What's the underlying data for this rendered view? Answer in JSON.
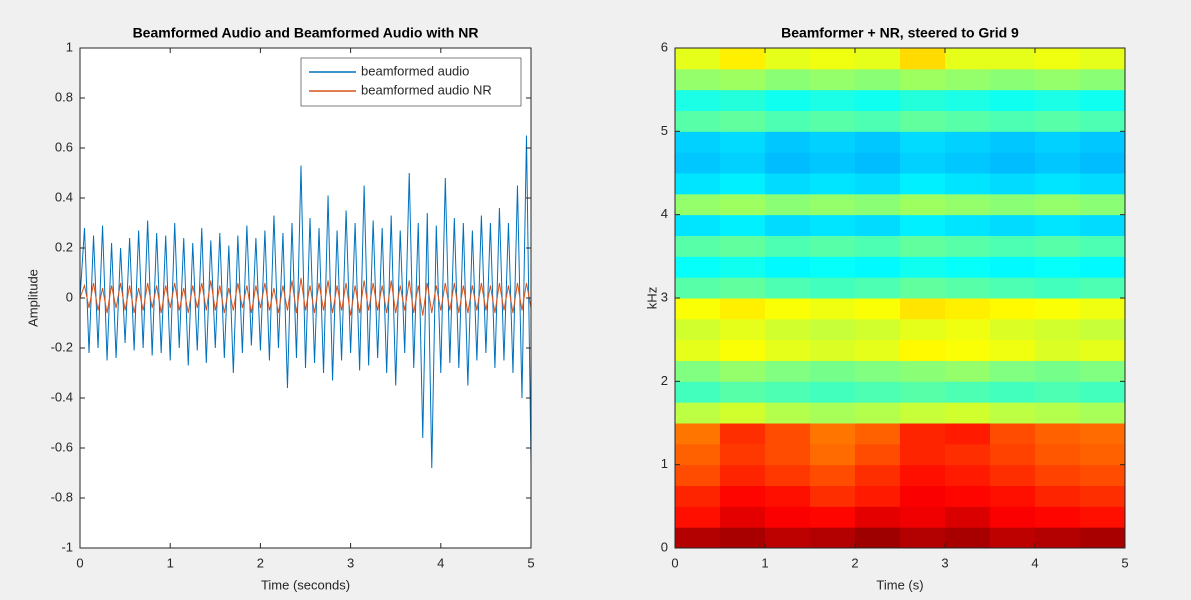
{
  "chart_data": [
    {
      "type": "line",
      "title": "Beamformed Audio and Beamformed Audio with NR",
      "xlabel": "Time (seconds)",
      "ylabel": "Amplitude",
      "xlim": [
        0,
        5
      ],
      "ylim": [
        -1,
        1
      ],
      "xticks": [
        0,
        1,
        2,
        3,
        4,
        5
      ],
      "yticks": [
        -1,
        -0.8,
        -0.6,
        -0.4,
        -0.2,
        0,
        0.2,
        0.4,
        0.6,
        0.8,
        1
      ],
      "legend": "upper right",
      "x": [
        0,
        0.05,
        0.1,
        0.15,
        0.2,
        0.25,
        0.3,
        0.35,
        0.4,
        0.45,
        0.5,
        0.55,
        0.6,
        0.65,
        0.7,
        0.75,
        0.8,
        0.85,
        0.9,
        0.95,
        1,
        1.05,
        1.1,
        1.15,
        1.2,
        1.25,
        1.3,
        1.35,
        1.4,
        1.45,
        1.5,
        1.55,
        1.6,
        1.65,
        1.7,
        1.75,
        1.8,
        1.85,
        1.9,
        1.95,
        2,
        2.05,
        2.1,
        2.15,
        2.2,
        2.25,
        2.3,
        2.35,
        2.4,
        2.45,
        2.5,
        2.55,
        2.6,
        2.65,
        2.7,
        2.75,
        2.8,
        2.85,
        2.9,
        2.95,
        3,
        3.05,
        3.1,
        3.15,
        3.2,
        3.25,
        3.3,
        3.35,
        3.4,
        3.45,
        3.5,
        3.55,
        3.6,
        3.65,
        3.7,
        3.75,
        3.8,
        3.85,
        3.9,
        3.95,
        4,
        4.05,
        4.1,
        4.15,
        4.2,
        4.25,
        4.3,
        4.35,
        4.4,
        4.45,
        4.5,
        4.55,
        4.6,
        4.65,
        4.7,
        4.75,
        4.8,
        4.85,
        4.9,
        4.95,
        5
      ],
      "series": [
        {
          "name": "beamformed audio",
          "color": "#0072bd",
          "values": [
            0,
            0.28,
            -0.22,
            0.25,
            -0.2,
            0.29,
            -0.25,
            0.22,
            -0.24,
            0.2,
            -0.18,
            0.24,
            -0.21,
            0.27,
            -0.2,
            0.31,
            -0.23,
            0.26,
            -0.22,
            0.25,
            -0.25,
            0.3,
            -0.2,
            0.24,
            -0.27,
            0.22,
            -0.21,
            0.28,
            -0.26,
            0.23,
            -0.2,
            0.26,
            -0.24,
            0.21,
            -0.3,
            0.25,
            -0.22,
            0.29,
            -0.19,
            0.24,
            -0.21,
            0.27,
            -0.25,
            0.33,
            -0.2,
            0.26,
            -0.36,
            0.3,
            -0.24,
            0.53,
            -0.28,
            0.32,
            -0.26,
            0.28,
            -0.3,
            0.41,
            -0.33,
            0.27,
            -0.25,
            0.35,
            -0.22,
            0.3,
            -0.29,
            0.45,
            -0.27,
            0.31,
            -0.24,
            0.28,
            -0.3,
            0.33,
            -0.35,
            0.27,
            -0.22,
            0.5,
            -0.28,
            0.3,
            -0.56,
            0.34,
            -0.68,
            0.29,
            -0.3,
            0.48,
            -0.26,
            0.32,
            -0.28,
            0.3,
            -0.35,
            0.27,
            -0.25,
            0.33,
            -0.22,
            0.3,
            -0.28,
            0.36,
            -0.25,
            0.3,
            -0.3,
            0.45,
            -0.4,
            0.65,
            -0.66
          ]
        },
        {
          "name": "beamformed audio NR",
          "color": "#d95319",
          "values": [
            0,
            0.05,
            -0.04,
            0.06,
            -0.05,
            0.04,
            -0.06,
            0.05,
            -0.04,
            0.06,
            -0.05,
            0.05,
            -0.06,
            0.04,
            -0.05,
            0.06,
            -0.04,
            0.05,
            -0.06,
            0.05,
            -0.04,
            0.06,
            -0.05,
            0.04,
            -0.06,
            0.05,
            -0.04,
            0.06,
            -0.05,
            0.07,
            -0.05,
            0.05,
            -0.06,
            0.04,
            -0.05,
            0.06,
            -0.04,
            0.05,
            -0.06,
            0.05,
            -0.04,
            0.06,
            -0.05,
            0.04,
            -0.06,
            0.05,
            -0.05,
            0.07,
            -0.06,
            0.08,
            -0.05,
            0.05,
            -0.06,
            0.06,
            -0.05,
            0.07,
            -0.06,
            0.05,
            -0.05,
            0.06,
            -0.07,
            0.05,
            -0.06,
            0.07,
            -0.05,
            0.06,
            -0.05,
            0.05,
            -0.06,
            0.07,
            -0.06,
            0.05,
            -0.05,
            0.07,
            -0.06,
            0.05,
            -0.07,
            0.06,
            -0.06,
            0.05,
            -0.05,
            0.06,
            -0.05,
            0.06,
            -0.06,
            0.05,
            -0.06,
            0.05,
            -0.05,
            0.06,
            -0.05,
            0.05,
            -0.06,
            0.06,
            -0.05,
            0.05,
            -0.06,
            0.06,
            -0.05,
            0.06,
            -0.04
          ]
        }
      ]
    },
    {
      "type": "heatmap",
      "title": "Beamformer + NR, steered to Grid 9",
      "xlabel": "Time (s)",
      "ylabel": "kHz",
      "xlim": [
        0,
        5
      ],
      "ylim": [
        0,
        6
      ],
      "xticks": [
        0,
        1,
        2,
        3,
        4,
        5
      ],
      "yticks": [
        0,
        1,
        2,
        3,
        4,
        5,
        6
      ],
      "colormap": "jet",
      "clim": [
        0,
        1
      ],
      "xbins": [
        0,
        0.5,
        1,
        1.5,
        2,
        2.5,
        3,
        3.5,
        4,
        4.5,
        5
      ],
      "ybins": [
        0,
        0.25,
        0.5,
        0.75,
        1,
        1.25,
        1.5,
        1.75,
        2,
        2.25,
        2.5,
        2.75,
        3,
        3.25,
        3.5,
        3.75,
        4,
        4.25,
        4.5,
        4.75,
        5,
        5.25,
        5.5,
        5.75,
        6
      ],
      "z": [
        [
          0.95,
          0.96,
          0.94,
          0.95,
          0.97,
          0.95,
          0.96,
          0.94,
          0.95,
          0.96
        ],
        [
          0.86,
          0.9,
          0.88,
          0.87,
          0.9,
          0.89,
          0.91,
          0.88,
          0.87,
          0.86
        ],
        [
          0.84,
          0.87,
          0.86,
          0.83,
          0.85,
          0.88,
          0.87,
          0.86,
          0.84,
          0.83
        ],
        [
          0.8,
          0.84,
          0.82,
          0.8,
          0.83,
          0.86,
          0.85,
          0.83,
          0.81,
          0.8
        ],
        [
          0.78,
          0.82,
          0.8,
          0.77,
          0.8,
          0.84,
          0.83,
          0.81,
          0.79,
          0.78
        ],
        [
          0.76,
          0.83,
          0.8,
          0.76,
          0.78,
          0.84,
          0.85,
          0.8,
          0.78,
          0.77
        ],
        [
          0.56,
          0.58,
          0.55,
          0.54,
          0.55,
          0.57,
          0.58,
          0.56,
          0.55,
          0.54
        ],
        [
          0.44,
          0.46,
          0.45,
          0.44,
          0.45,
          0.46,
          0.45,
          0.44,
          0.45,
          0.44
        ],
        [
          0.5,
          0.52,
          0.5,
          0.49,
          0.5,
          0.51,
          0.52,
          0.5,
          0.49,
          0.5
        ],
        [
          0.6,
          0.62,
          0.6,
          0.59,
          0.6,
          0.63,
          0.62,
          0.61,
          0.59,
          0.6
        ],
        [
          0.58,
          0.6,
          0.58,
          0.57,
          0.58,
          0.6,
          0.61,
          0.59,
          0.58,
          0.57
        ],
        [
          0.62,
          0.64,
          0.62,
          0.61,
          0.62,
          0.65,
          0.64,
          0.63,
          0.62,
          0.61
        ],
        [
          0.46,
          0.47,
          0.45,
          0.44,
          0.45,
          0.47,
          0.46,
          0.45,
          0.44,
          0.45
        ],
        [
          0.38,
          0.39,
          0.37,
          0.38,
          0.37,
          0.39,
          0.38,
          0.37,
          0.38,
          0.37
        ],
        [
          0.46,
          0.47,
          0.45,
          0.46,
          0.45,
          0.47,
          0.46,
          0.45,
          0.46,
          0.45
        ],
        [
          0.35,
          0.36,
          0.34,
          0.35,
          0.34,
          0.36,
          0.35,
          0.34,
          0.35,
          0.34
        ],
        [
          0.52,
          0.53,
          0.51,
          0.52,
          0.51,
          0.53,
          0.52,
          0.51,
          0.52,
          0.51
        ],
        [
          0.35,
          0.36,
          0.34,
          0.35,
          0.34,
          0.36,
          0.35,
          0.34,
          0.35,
          0.34
        ],
        [
          0.32,
          0.33,
          0.31,
          0.32,
          0.31,
          0.33,
          0.32,
          0.31,
          0.32,
          0.31
        ],
        [
          0.33,
          0.34,
          0.32,
          0.33,
          0.32,
          0.34,
          0.33,
          0.32,
          0.33,
          0.32
        ],
        [
          0.46,
          0.47,
          0.45,
          0.46,
          0.45,
          0.47,
          0.46,
          0.45,
          0.46,
          0.45
        ],
        [
          0.4,
          0.41,
          0.39,
          0.4,
          0.39,
          0.41,
          0.4,
          0.39,
          0.4,
          0.39
        ],
        [
          0.52,
          0.53,
          0.51,
          0.52,
          0.51,
          0.53,
          0.52,
          0.51,
          0.52,
          0.51
        ],
        [
          0.6,
          0.64,
          0.6,
          0.61,
          0.6,
          0.66,
          0.6,
          0.6,
          0.61,
          0.6
        ]
      ]
    }
  ]
}
